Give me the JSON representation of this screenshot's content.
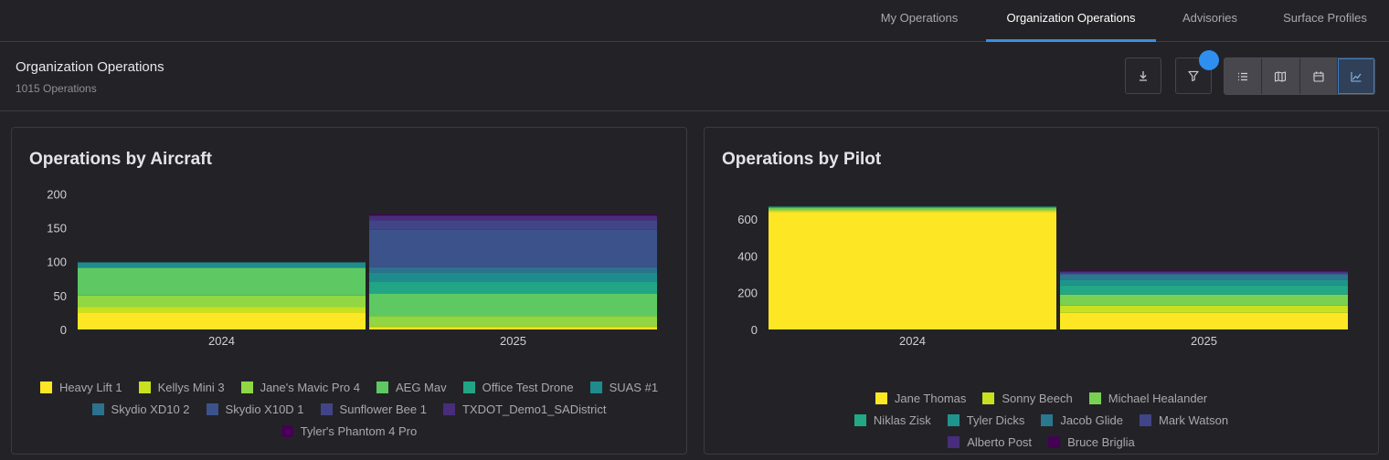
{
  "nav": {
    "tabs": [
      {
        "label": "My Operations",
        "active": false
      },
      {
        "label": "Organization Operations",
        "active": true
      },
      {
        "label": "Advisories",
        "active": false
      },
      {
        "label": "Surface Profiles",
        "active": false
      }
    ]
  },
  "header": {
    "title": "Organization Operations",
    "subtitle": "1015 Operations",
    "buttons": [
      "download-icon",
      "filter-icon"
    ],
    "view_modes": [
      "list-icon",
      "map-icon",
      "calendar-icon",
      "chart-icon"
    ],
    "active_view": "chart-icon",
    "accent_color": "#3d8fe0"
  },
  "chart_data": [
    {
      "type": "bar",
      "stacked": true,
      "title": "Operations by Aircraft",
      "categories": [
        "2024",
        "2025"
      ],
      "ylim": [
        0,
        210
      ],
      "yticks": [
        0,
        50,
        100,
        150,
        200
      ],
      "grid": false,
      "legend_position": "bottom",
      "series": [
        {
          "name": "Heavy Lift 1",
          "color": "#fde725",
          "values": [
            25,
            2
          ]
        },
        {
          "name": "Kellys Mini 3",
          "color": "#c8e020",
          "values": [
            8,
            3
          ]
        },
        {
          "name": "Jane's Mavic Pro 4",
          "color": "#90d743",
          "values": [
            17,
            15
          ]
        },
        {
          "name": "AEG Mav",
          "color": "#5ec962",
          "values": [
            41,
            33
          ]
        },
        {
          "name": "Office Test Drone",
          "color": "#21a585",
          "values": [
            0,
            18
          ]
        },
        {
          "name": "SUAS #1",
          "color": "#1e8b8d",
          "values": [
            8,
            13
          ]
        },
        {
          "name": "Skydio XD10 2",
          "color": "#2c728e",
          "values": [
            0,
            8
          ]
        },
        {
          "name": "Skydio X10D 1",
          "color": "#3b528b",
          "values": [
            0,
            55
          ]
        },
        {
          "name": "Sunflower Bee 1",
          "color": "#414487",
          "values": [
            0,
            14
          ]
        },
        {
          "name": "TXDOT_Demo1_SADistrict",
          "color": "#472d7b",
          "values": [
            0,
            7
          ]
        },
        {
          "name": "Tyler's Phantom 4 Pro",
          "color": "#440154",
          "values": [
            0,
            2
          ]
        }
      ]
    },
    {
      "type": "bar",
      "stacked": true,
      "title": "Operations by Pilot",
      "categories": [
        "2024",
        "2025"
      ],
      "ylim": [
        0,
        690
      ],
      "yticks": [
        0,
        200,
        400,
        600
      ],
      "grid": false,
      "legend_position": "bottom",
      "series": [
        {
          "name": "Jane Thomas",
          "color": "#fde725",
          "values": [
            640,
            90
          ]
        },
        {
          "name": "Sonny Beech",
          "color": "#c8e020",
          "values": [
            8,
            40
          ]
        },
        {
          "name": "Michael Healander",
          "color": "#7ad151",
          "values": [
            12,
            60
          ]
        },
        {
          "name": "Niklas Zisk",
          "color": "#22a884",
          "values": [
            8,
            50
          ]
        },
        {
          "name": "Tyler Dicks",
          "color": "#1f948c",
          "values": [
            0,
            30
          ]
        },
        {
          "name": "Jacob Glide",
          "color": "#2a788e",
          "values": [
            0,
            30
          ]
        },
        {
          "name": "Mark Watson",
          "color": "#414487",
          "values": [
            0,
            10
          ]
        },
        {
          "name": "Alberto Post",
          "color": "#472d7b",
          "values": [
            0,
            6
          ]
        },
        {
          "name": "Bruce Briglia",
          "color": "#440154",
          "values": [
            0,
            4
          ]
        }
      ]
    }
  ]
}
